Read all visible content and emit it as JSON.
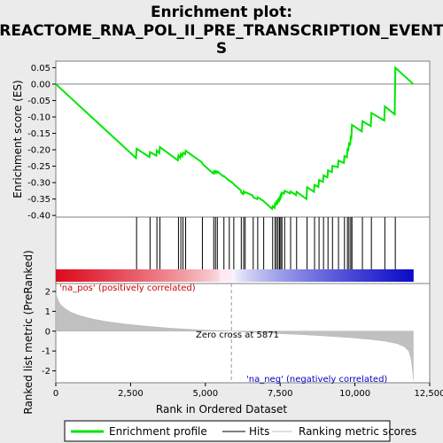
{
  "chart_data": {
    "type": "line",
    "title_lines": [
      "Enrichment plot:",
      "REACTOME_RNA_POL_II_PRE_TRANSCRIPTION_EVENT",
      "S"
    ],
    "xlabel": "Rank in Ordered Dataset",
    "ylabel_top": "Enrichment score (ES)",
    "ylabel_bottom": "Ranked list metric (PreRanked)",
    "xlim": [
      0,
      12500
    ],
    "x_ticks": [
      0,
      2500,
      5000,
      7500,
      10000,
      12500
    ],
    "x_tick_labels": [
      "0",
      "2,500",
      "5,000",
      "7,500",
      "10,000",
      "12,500"
    ],
    "es_ylim": [
      -0.405,
      0.07
    ],
    "es_ticks": [
      0.05,
      0.0,
      -0.05,
      -0.1,
      -0.15,
      -0.2,
      -0.25,
      -0.3,
      -0.35,
      -0.4
    ],
    "es_tick_labels": [
      "0.05",
      "0.00",
      "-0.05",
      "-0.10",
      "-0.15",
      "-0.20",
      "-0.25",
      "-0.30",
      "-0.35",
      "-0.40"
    ],
    "metric_ylim": [
      -2.6,
      2.4
    ],
    "metric_ticks": [
      2,
      1,
      0,
      -1,
      -2
    ],
    "metric_tick_labels": [
      "2",
      "1",
      "0",
      "-1",
      "-2"
    ],
    "n_genes": 11950,
    "zero_cross_rank": 5871,
    "annotations": {
      "pos": "'na_pos' (positively correlated)",
      "neg": "'na_neg' (negatively correlated)",
      "zero": "Zero cross at 5871"
    },
    "legend": [
      "Enrichment profile",
      "Hits",
      "Ranking metric scores"
    ],
    "colors": {
      "es_line": "#00e600",
      "hits": "#000000",
      "metric": "#c0c0c0",
      "pos_label": "#cc0000",
      "neg_label": "#0000cc",
      "zero_line": "#999999"
    },
    "hits": [
      2700,
      3150,
      3380,
      3480,
      4100,
      4180,
      4250,
      4340,
      4900,
      5280,
      5340,
      5400,
      5620,
      5800,
      5950,
      6200,
      6280,
      6330,
      6600,
      6750,
      6950,
      7250,
      7330,
      7380,
      7430,
      7480,
      7520,
      7560,
      7650,
      7850,
      8050,
      8400,
      8650,
      8800,
      8950,
      9100,
      9250,
      9450,
      9650,
      9750,
      9800,
      9860,
      9900,
      10250,
      10550,
      11000,
      11350
    ],
    "es_points": [
      [
        0,
        0.0
      ],
      [
        2680,
        -0.225
      ],
      [
        2700,
        -0.197
      ],
      [
        3130,
        -0.222
      ],
      [
        3150,
        -0.207
      ],
      [
        3360,
        -0.218
      ],
      [
        3380,
        -0.202
      ],
      [
        3460,
        -0.21
      ],
      [
        3480,
        -0.192
      ],
      [
        4080,
        -0.232
      ],
      [
        4100,
        -0.217
      ],
      [
        4160,
        -0.225
      ],
      [
        4180,
        -0.213
      ],
      [
        4230,
        -0.219
      ],
      [
        4250,
        -0.209
      ],
      [
        4320,
        -0.214
      ],
      [
        4340,
        -0.203
      ],
      [
        4880,
        -0.238
      ],
      [
        4900,
        -0.243
      ],
      [
        5260,
        -0.272
      ],
      [
        5280,
        -0.266
      ],
      [
        5320,
        -0.271
      ],
      [
        5340,
        -0.265
      ],
      [
        5380,
        -0.27
      ],
      [
        5400,
        -0.266
      ],
      [
        5600,
        -0.281
      ],
      [
        5620,
        -0.28
      ],
      [
        5780,
        -0.293
      ],
      [
        5800,
        -0.294
      ],
      [
        5930,
        -0.302
      ],
      [
        5950,
        -0.305
      ],
      [
        6180,
        -0.323
      ],
      [
        6200,
        -0.33
      ],
      [
        6260,
        -0.335
      ],
      [
        6280,
        -0.327
      ],
      [
        6310,
        -0.331
      ],
      [
        6330,
        -0.329
      ],
      [
        6580,
        -0.339
      ],
      [
        6600,
        -0.345
      ],
      [
        6730,
        -0.35
      ],
      [
        6750,
        -0.345
      ],
      [
        6930,
        -0.355
      ],
      [
        6950,
        -0.357
      ],
      [
        7230,
        -0.38
      ],
      [
        7250,
        -0.372
      ],
      [
        7310,
        -0.377
      ],
      [
        7330,
        -0.364
      ],
      [
        7360,
        -0.367
      ],
      [
        7380,
        -0.358
      ],
      [
        7410,
        -0.362
      ],
      [
        7430,
        -0.352
      ],
      [
        7460,
        -0.356
      ],
      [
        7480,
        -0.346
      ],
      [
        7500,
        -0.349
      ],
      [
        7520,
        -0.338
      ],
      [
        7540,
        -0.341
      ],
      [
        7560,
        -0.33
      ],
      [
        7630,
        -0.334
      ],
      [
        7650,
        -0.325
      ],
      [
        7830,
        -0.333
      ],
      [
        7850,
        -0.327
      ],
      [
        8030,
        -0.338
      ],
      [
        8050,
        -0.328
      ],
      [
        8380,
        -0.35
      ],
      [
        8400,
        -0.314
      ],
      [
        8630,
        -0.328
      ],
      [
        8650,
        -0.307
      ],
      [
        8780,
        -0.313
      ],
      [
        8800,
        -0.292
      ],
      [
        8930,
        -0.298
      ],
      [
        8950,
        -0.278
      ],
      [
        9080,
        -0.284
      ],
      [
        9100,
        -0.263
      ],
      [
        9230,
        -0.268
      ],
      [
        9250,
        -0.249
      ],
      [
        9430,
        -0.253
      ],
      [
        9450,
        -0.233
      ],
      [
        9630,
        -0.24
      ],
      [
        9650,
        -0.219
      ],
      [
        9730,
        -0.223
      ],
      [
        9750,
        -0.199
      ],
      [
        9780,
        -0.201
      ],
      [
        9800,
        -0.181
      ],
      [
        9840,
        -0.184
      ],
      [
        9860,
        -0.162
      ],
      [
        9880,
        -0.164
      ],
      [
        9900,
        -0.124
      ],
      [
        10230,
        -0.144
      ],
      [
        10250,
        -0.113
      ],
      [
        10530,
        -0.128
      ],
      [
        10550,
        -0.088
      ],
      [
        10980,
        -0.111
      ],
      [
        11000,
        -0.068
      ],
      [
        11330,
        -0.092
      ],
      [
        11350,
        0.05
      ],
      [
        11950,
        0.0
      ]
    ],
    "metric_curve": [
      [
        0,
        1.9
      ],
      [
        60,
        1.6
      ],
      [
        150,
        1.35
      ],
      [
        300,
        1.15
      ],
      [
        500,
        0.95
      ],
      [
        800,
        0.78
      ],
      [
        1200,
        0.62
      ],
      [
        1700,
        0.48
      ],
      [
        2300,
        0.36
      ],
      [
        3000,
        0.25
      ],
      [
        3800,
        0.15
      ],
      [
        4600,
        0.08
      ],
      [
        5300,
        0.03
      ],
      [
        5871,
        0.0
      ],
      [
        6500,
        -0.05
      ],
      [
        7300,
        -0.11
      ],
      [
        8200,
        -0.17
      ],
      [
        9000,
        -0.24
      ],
      [
        9800,
        -0.32
      ],
      [
        10500,
        -0.41
      ],
      [
        11000,
        -0.5
      ],
      [
        11400,
        -0.62
      ],
      [
        11650,
        -0.78
      ],
      [
        11800,
        -1.0
      ],
      [
        11880,
        -1.4
      ],
      [
        11930,
        -2.0
      ],
      [
        11950,
        -2.45
      ]
    ]
  }
}
